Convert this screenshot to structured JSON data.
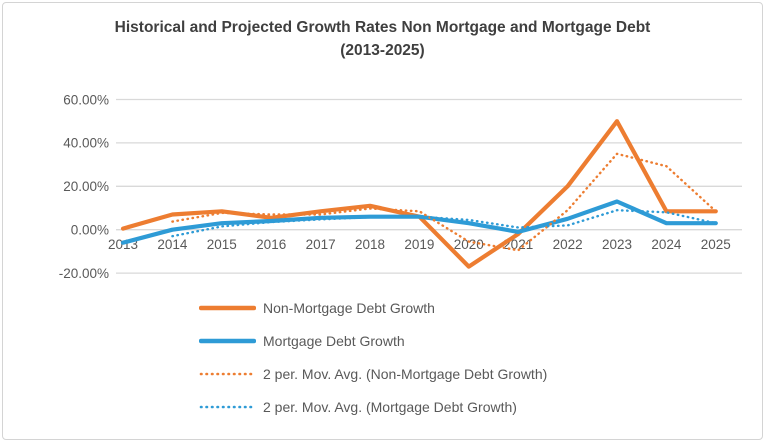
{
  "title": {
    "line1": "Historical and Projected Growth Rates Non Mortgage and Mortgage Debt",
    "line2": "(2013-2025)"
  },
  "colors": {
    "orange": "#ED7D31",
    "blue": "#2E9BD6",
    "grid": "#D9D9D9",
    "axis_text": "#595959",
    "title_text": "#3F3F3F",
    "border": "#D4D4D4"
  },
  "chart_data": {
    "type": "line",
    "title": "Historical and Projected Growth Rates Non Mortgage and Mortgage Debt (2013-2025)",
    "categories": [
      "2013",
      "2014",
      "2015",
      "2016",
      "2017",
      "2018",
      "2019",
      "2020",
      "2021",
      "2022",
      "2023",
      "2024",
      "2025"
    ],
    "series": [
      {
        "name": "Non-Mortgage Debt Growth",
        "style": "solid",
        "color_key": "orange",
        "values": [
          0.5,
          7,
          8.5,
          5.5,
          8.5,
          11,
          6,
          -17,
          -2,
          20,
          50,
          8.5,
          8.5
        ]
      },
      {
        "name": "Mortgage Debt Growth",
        "style": "solid",
        "color_key": "blue",
        "values": [
          -6,
          0,
          3,
          4,
          5.5,
          6,
          6,
          3,
          -1,
          5,
          13,
          3,
          3
        ]
      },
      {
        "name": "2 per. Mov. Avg. (Non-Mortgage Debt Growth)",
        "style": "dotted",
        "color_key": "orange",
        "values": [
          null,
          3.75,
          7.75,
          7,
          7,
          9.75,
          8.5,
          -5.5,
          -9.5,
          9,
          35,
          29.25,
          8.5
        ]
      },
      {
        "name": "2 per. Mov. Avg. (Mortgage Debt Growth)",
        "style": "dotted",
        "color_key": "blue",
        "values": [
          null,
          -3,
          1.5,
          3.5,
          4.75,
          5.75,
          6,
          4.5,
          1,
          2,
          9,
          8,
          3
        ]
      }
    ],
    "y_ticks": [
      {
        "label": "60.00%",
        "value": 60
      },
      {
        "label": "40.00%",
        "value": 40
      },
      {
        "label": "20.00%",
        "value": 20
      },
      {
        "label": "0.00%",
        "value": 0
      },
      {
        "label": "-20.00%",
        "value": -20
      }
    ],
    "ylim": [
      -20,
      60
    ],
    "xlabel": "",
    "ylabel": "",
    "grid": "horizontal",
    "legend_position": "bottom-left"
  }
}
